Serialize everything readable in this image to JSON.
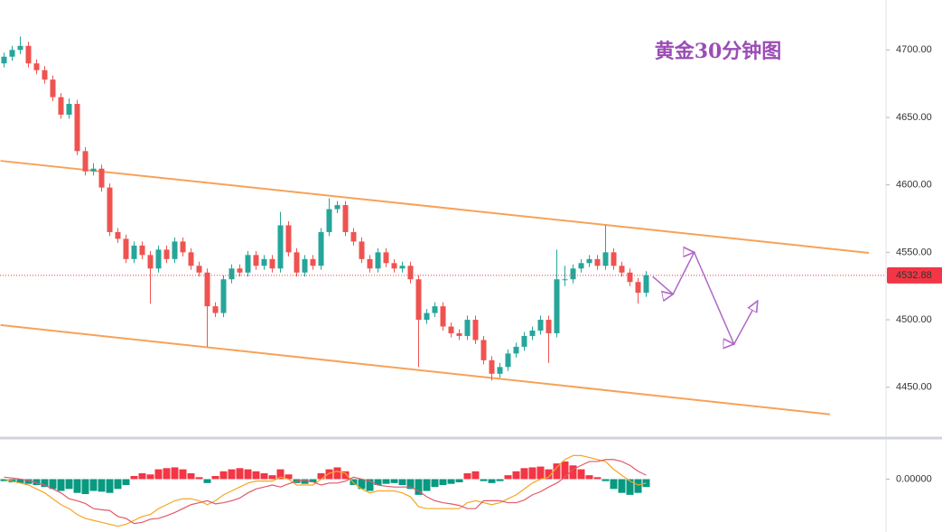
{
  "chart_data": [
    {
      "type": "candlestick",
      "title": "黄金30分钟图",
      "title_color": "#9b4db5",
      "up_color": "#26a69a",
      "down_color": "#ef5350",
      "xlim": [
        -0.5,
        108.5
      ],
      "ylim": [
        4413,
        4737
      ],
      "yticks": [
        {
          "value": 4450,
          "label": "4450.00"
        },
        {
          "value": 4500,
          "label": "4500.00"
        },
        {
          "value": 4550,
          "label": "4550.00"
        },
        {
          "value": 4600,
          "label": "4600.00"
        },
        {
          "value": 4650,
          "label": "4650.00"
        },
        {
          "value": 4700,
          "label": "4700.00"
        }
      ],
      "opens": [
        4690,
        4695,
        4700,
        4703,
        4690,
        4685,
        4678,
        4665,
        4652,
        4660,
        4625,
        4610,
        4612,
        4598,
        4565,
        4560,
        4545,
        4555,
        4548,
        4538,
        4552,
        4545,
        4558,
        4550,
        4540,
        4535,
        4510,
        4505,
        4530,
        4538,
        4535,
        4548,
        4540,
        4545,
        4538,
        4570,
        4550,
        4535,
        4545,
        4540,
        4565,
        4582,
        4585,
        4565,
        4558,
        4545,
        4538,
        4550,
        4542,
        4538,
        4540,
        4530,
        4500,
        4505,
        4510,
        4495,
        4490,
        4488,
        4500,
        4485,
        4470,
        4460,
        4465,
        4475,
        4480,
        4488,
        4492,
        4500,
        4490,
        4530,
        4530,
        4538,
        4542,
        4545,
        4540,
        4550,
        4540,
        4535,
        4528,
        4520
      ],
      "highs": [
        4698,
        4703,
        4710,
        4706,
        4693,
        4688,
        4681,
        4668,
        4664,
        4663,
        4628,
        4616,
        4615,
        4601,
        4568,
        4563,
        4558,
        4558,
        4551,
        4555,
        4555,
        4561,
        4561,
        4553,
        4543,
        4538,
        4513,
        4533,
        4541,
        4541,
        4551,
        4551,
        4548,
        4548,
        4580,
        4573,
        4553,
        4548,
        4548,
        4568,
        4590,
        4588,
        4588,
        4568,
        4561,
        4548,
        4553,
        4553,
        4545,
        4543,
        4543,
        4533,
        4508,
        4513,
        4513,
        4498,
        4493,
        4503,
        4503,
        4488,
        4473,
        4468,
        4478,
        4483,
        4491,
        4495,
        4503,
        4503,
        4552,
        4540,
        4541,
        4545,
        4548,
        4548,
        4570,
        4553,
        4543,
        4538,
        4531,
        4536
      ],
      "lows": [
        4687,
        4692,
        4697,
        4687,
        4682,
        4675,
        4662,
        4649,
        4649,
        4622,
        4607,
        4607,
        4595,
        4562,
        4557,
        4542,
        4542,
        4545,
        4512,
        4535,
        4542,
        4542,
        4547,
        4537,
        4532,
        4480,
        4502,
        4502,
        4527,
        4532,
        4532,
        4537,
        4537,
        4535,
        4535,
        4547,
        4532,
        4532,
        4537,
        4537,
        4562,
        4579,
        4562,
        4555,
        4542,
        4535,
        4535,
        4539,
        4535,
        4535,
        4527,
        4465,
        4497,
        4502,
        4492,
        4487,
        4485,
        4485,
        4482,
        4467,
        4455,
        4457,
        4462,
        4472,
        4477,
        4485,
        4489,
        4468,
        4487,
        4525,
        4527,
        4535,
        4539,
        4537,
        4537,
        4537,
        4532,
        4525,
        4512,
        4517
      ],
      "closes": [
        4695,
        4700,
        4703,
        4690,
        4685,
        4678,
        4665,
        4652,
        4660,
        4625,
        4610,
        4612,
        4598,
        4565,
        4560,
        4545,
        4555,
        4548,
        4538,
        4552,
        4545,
        4558,
        4550,
        4540,
        4535,
        4510,
        4505,
        4530,
        4538,
        4535,
        4548,
        4540,
        4545,
        4538,
        4570,
        4550,
        4535,
        4545,
        4540,
        4565,
        4582,
        4585,
        4565,
        4558,
        4545,
        4538,
        4550,
        4542,
        4538,
        4540,
        4530,
        4500,
        4505,
        4510,
        4495,
        4490,
        4488,
        4500,
        4485,
        4470,
        4460,
        4465,
        4475,
        4480,
        4488,
        4492,
        4500,
        4490,
        4530,
        4530,
        4538,
        4542,
        4545,
        4540,
        4550,
        4540,
        4535,
        4528,
        4520,
        4533
      ],
      "last_price": 4532.88,
      "last_price_color": "#f23645",
      "trendlines": [
        {
          "color": "#f7a25a",
          "x": [
            -0.44,
            106.4
          ],
          "y": [
            4617.8,
            4549.6
          ]
        },
        {
          "color": "#f7a25a",
          "x": [
            -0.44,
            101.6
          ],
          "y": [
            4496.1,
            4429.9
          ]
        }
      ],
      "projection": {
        "color": "#b066c8",
        "x": [
          79.8,
          82.3,
          84.9,
          89.8,
          92.7
        ],
        "y": [
          4532,
          4519,
          4550,
          4482,
          4514
        ]
      }
    },
    {
      "type": "macd",
      "ylim": [
        -13,
        10
      ],
      "yticks": [
        {
          "value": 0,
          "label": "0.00000"
        }
      ],
      "pos_color": "#f23645",
      "neg_color": "#089981",
      "histogram": [
        -0.5,
        -0.8,
        -1,
        -1.2,
        -1.5,
        -2,
        -2.5,
        -3,
        -2.5,
        -3.5,
        -3.8,
        -3,
        -3.2,
        -3.5,
        -2.5,
        -1.5,
        0.8,
        1.5,
        1.2,
        2.5,
        2.8,
        3,
        2.5,
        1.5,
        0.5,
        -1,
        0.8,
        2,
        2.5,
        2.8,
        2.5,
        2,
        1.5,
        1,
        2.5,
        1.2,
        -1,
        -1.2,
        -0.8,
        1.5,
        2.5,
        3,
        2,
        -1.5,
        -2.5,
        -3,
        -1.5,
        -1.2,
        -1,
        -1.5,
        -2.5,
        -4,
        -3,
        -2,
        -1.5,
        -1.2,
        -0.8,
        1.5,
        2,
        -0.5,
        -1,
        -0.5,
        1,
        2,
        2.8,
        3,
        3.2,
        2.5,
        4,
        4.5,
        3.5,
        2.5,
        1,
        0.5,
        -0.5,
        -2.5,
        -3.5,
        -4,
        -3.5,
        -2
      ],
      "lines": [
        {
          "color": "#f5a623",
          "values": [
            0,
            -0.5,
            -1,
            -1.5,
            -2.5,
            -3.5,
            -5,
            -6.5,
            -7.5,
            -9,
            -10,
            -10.5,
            -11,
            -11.5,
            -12,
            -11.5,
            -10.5,
            -9.5,
            -9,
            -7.5,
            -6.5,
            -5.5,
            -5,
            -5,
            -5.5,
            -6.5,
            -5.5,
            -4,
            -3,
            -2,
            -1,
            -0.5,
            -0.5,
            -0.5,
            0.5,
            0,
            -1.5,
            -1.5,
            -1.5,
            0,
            1.5,
            2,
            1.5,
            -1,
            -2.5,
            -3.5,
            -3,
            -3,
            -3,
            -3.5,
            -4.5,
            -7,
            -7.5,
            -7.5,
            -7.5,
            -7.5,
            -7.5,
            -6,
            -5.5,
            -6,
            -6.5,
            -6,
            -5,
            -4,
            -2.5,
            -1,
            0,
            0.5,
            3,
            5,
            6,
            6,
            5.5,
            5,
            4.5,
            2.5,
            1,
            -0.5,
            -1.5,
            -1
          ]
        },
        {
          "color": "#e05a6b",
          "values": [
            0.5,
            0.3,
            0,
            -0.3,
            -1,
            -1.5,
            -2.5,
            -3.5,
            -5,
            -5.5,
            -6.2,
            -7.5,
            -7.8,
            -8,
            -9.5,
            -10,
            -11.3,
            -11,
            -10.2,
            -10,
            -9.3,
            -8.5,
            -7.5,
            -6.5,
            -6,
            -5.5,
            -6.3,
            -6,
            -5.5,
            -4.8,
            -3.5,
            -2.5,
            -2,
            -1.5,
            -2,
            -1.2,
            -0.5,
            -0.3,
            -0.7,
            -1.5,
            -1,
            -1,
            -0.5,
            0.5,
            0,
            -0.5,
            -1.5,
            -1.8,
            -2,
            -2,
            -2,
            -3,
            -4.5,
            -5.5,
            -6,
            -6.3,
            -6.7,
            -7.5,
            -7.5,
            -5.5,
            -5.5,
            -5.5,
            -6,
            -6,
            -5.3,
            -4,
            -3.2,
            -2,
            -1,
            0.5,
            2.5,
            3.5,
            4.5,
            4.5,
            5,
            5,
            4.5,
            3.5,
            2,
            1
          ]
        }
      ]
    }
  ]
}
